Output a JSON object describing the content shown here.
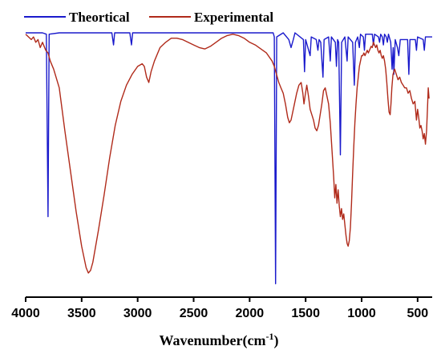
{
  "chart_data": {
    "type": "line",
    "title": "",
    "xlabel": "Wavenumber(cm",
    "xlabel_sup": "-1",
    "xlabel_close": ")",
    "ylabel": "",
    "xlim": [
      4000,
      370
    ],
    "ylim": [
      0,
      1
    ],
    "x_reversed": true,
    "y_ticks_shown": false,
    "grid": false,
    "legend_position": "top",
    "xticks": [
      4000,
      3500,
      3000,
      2500,
      2000,
      1500,
      1000,
      500
    ],
    "series": [
      {
        "name": "Theortical",
        "color": "#1a1acc",
        "points": [
          [
            4000,
            0.985
          ],
          [
            3850,
            0.985
          ],
          [
            3815,
            0.98
          ],
          [
            3800,
            0.3
          ],
          [
            3790,
            0.98
          ],
          [
            3700,
            0.985
          ],
          [
            3230,
            0.985
          ],
          [
            3215,
            0.94
          ],
          [
            3205,
            0.985
          ],
          [
            3070,
            0.985
          ],
          [
            3055,
            0.94
          ],
          [
            3045,
            0.985
          ],
          [
            1790,
            0.985
          ],
          [
            1780,
            0.97
          ],
          [
            1768,
            0.05
          ],
          [
            1758,
            0.97
          ],
          [
            1700,
            0.985
          ],
          [
            1650,
            0.96
          ],
          [
            1630,
            0.93
          ],
          [
            1610,
            0.96
          ],
          [
            1595,
            0.985
          ],
          [
            1520,
            0.96
          ],
          [
            1510,
            0.84
          ],
          [
            1500,
            0.96
          ],
          [
            1460,
            0.9
          ],
          [
            1450,
            0.97
          ],
          [
            1405,
            0.96
          ],
          [
            1390,
            0.92
          ],
          [
            1380,
            0.96
          ],
          [
            1365,
            0.95
          ],
          [
            1345,
            0.82
          ],
          [
            1335,
            0.96
          ],
          [
            1295,
            0.97
          ],
          [
            1280,
            0.88
          ],
          [
            1270,
            0.97
          ],
          [
            1235,
            0.95
          ],
          [
            1225,
            0.86
          ],
          [
            1215,
            0.96
          ],
          [
            1205,
            0.95
          ],
          [
            1190,
            0.53
          ],
          [
            1178,
            0.95
          ],
          [
            1150,
            0.97
          ],
          [
            1130,
            0.88
          ],
          [
            1120,
            0.97
          ],
          [
            1080,
            0.95
          ],
          [
            1065,
            0.79
          ],
          [
            1055,
            0.95
          ],
          [
            1035,
            0.97
          ],
          [
            1020,
            0.93
          ],
          [
            1010,
            0.98
          ],
          [
            985,
            0.97
          ],
          [
            975,
            0.92
          ],
          [
            965,
            0.98
          ],
          [
            905,
            0.98
          ],
          [
            895,
            0.94
          ],
          [
            885,
            0.98
          ],
          [
            850,
            0.97
          ],
          [
            840,
            0.95
          ],
          [
            830,
            0.98
          ],
          [
            815,
            0.97
          ],
          [
            805,
            0.94
          ],
          [
            795,
            0.98
          ],
          [
            780,
            0.97
          ],
          [
            770,
            0.95
          ],
          [
            760,
            0.98
          ],
          [
            740,
            0.95
          ],
          [
            728,
            0.85
          ],
          [
            718,
            0.93
          ],
          [
            712,
            0.83
          ],
          [
            700,
            0.96
          ],
          [
            680,
            0.93
          ],
          [
            668,
            0.9
          ],
          [
            655,
            0.96
          ],
          [
            590,
            0.96
          ],
          [
            578,
            0.83
          ],
          [
            568,
            0.96
          ],
          [
            520,
            0.96
          ],
          [
            510,
            0.92
          ],
          [
            500,
            0.97
          ],
          [
            450,
            0.96
          ],
          [
            440,
            0.92
          ],
          [
            430,
            0.97
          ],
          [
            370,
            0.97
          ]
        ]
      },
      {
        "name": "Experimental",
        "color": "#b02a1a",
        "points": [
          [
            4000,
            0.98
          ],
          [
            3950,
            0.96
          ],
          [
            3930,
            0.97
          ],
          [
            3910,
            0.95
          ],
          [
            3890,
            0.96
          ],
          [
            3870,
            0.93
          ],
          [
            3850,
            0.95
          ],
          [
            3820,
            0.92
          ],
          [
            3800,
            0.91
          ],
          [
            3780,
            0.88
          ],
          [
            3750,
            0.85
          ],
          [
            3700,
            0.78
          ],
          [
            3650,
            0.62
          ],
          [
            3600,
            0.47
          ],
          [
            3550,
            0.32
          ],
          [
            3500,
            0.19
          ],
          [
            3460,
            0.11
          ],
          [
            3440,
            0.09
          ],
          [
            3420,
            0.1
          ],
          [
            3400,
            0.13
          ],
          [
            3350,
            0.25
          ],
          [
            3300,
            0.38
          ],
          [
            3250,
            0.52
          ],
          [
            3200,
            0.64
          ],
          [
            3150,
            0.73
          ],
          [
            3100,
            0.79
          ],
          [
            3050,
            0.83
          ],
          [
            3000,
            0.86
          ],
          [
            2960,
            0.87
          ],
          [
            2940,
            0.86
          ],
          [
            2920,
            0.82
          ],
          [
            2900,
            0.8
          ],
          [
            2880,
            0.84
          ],
          [
            2850,
            0.88
          ],
          [
            2800,
            0.93
          ],
          [
            2750,
            0.95
          ],
          [
            2700,
            0.965
          ],
          [
            2650,
            0.965
          ],
          [
            2600,
            0.96
          ],
          [
            2550,
            0.95
          ],
          [
            2500,
            0.94
          ],
          [
            2450,
            0.93
          ],
          [
            2400,
            0.925
          ],
          [
            2350,
            0.935
          ],
          [
            2300,
            0.95
          ],
          [
            2250,
            0.965
          ],
          [
            2200,
            0.975
          ],
          [
            2150,
            0.98
          ],
          [
            2100,
            0.975
          ],
          [
            2050,
            0.965
          ],
          [
            2000,
            0.95
          ],
          [
            1950,
            0.94
          ],
          [
            1900,
            0.925
          ],
          [
            1850,
            0.91
          ],
          [
            1800,
            0.88
          ],
          [
            1780,
            0.86
          ],
          [
            1760,
            0.83
          ],
          [
            1740,
            0.8
          ],
          [
            1720,
            0.78
          ],
          [
            1700,
            0.76
          ],
          [
            1680,
            0.72
          ],
          [
            1660,
            0.67
          ],
          [
            1645,
            0.65
          ],
          [
            1630,
            0.66
          ],
          [
            1615,
            0.69
          ],
          [
            1600,
            0.72
          ],
          [
            1580,
            0.76
          ],
          [
            1560,
            0.79
          ],
          [
            1540,
            0.8
          ],
          [
            1525,
            0.76
          ],
          [
            1515,
            0.72
          ],
          [
            1505,
            0.75
          ],
          [
            1490,
            0.79
          ],
          [
            1475,
            0.75
          ],
          [
            1460,
            0.7
          ],
          [
            1445,
            0.68
          ],
          [
            1430,
            0.66
          ],
          [
            1415,
            0.63
          ],
          [
            1400,
            0.62
          ],
          [
            1385,
            0.64
          ],
          [
            1370,
            0.68
          ],
          [
            1355,
            0.72
          ],
          [
            1340,
            0.77
          ],
          [
            1325,
            0.78
          ],
          [
            1310,
            0.75
          ],
          [
            1295,
            0.72
          ],
          [
            1280,
            0.65
          ],
          [
            1265,
            0.55
          ],
          [
            1250,
            0.45
          ],
          [
            1240,
            0.37
          ],
          [
            1230,
            0.42
          ],
          [
            1220,
            0.35
          ],
          [
            1210,
            0.4
          ],
          [
            1200,
            0.34
          ],
          [
            1190,
            0.3
          ],
          [
            1180,
            0.33
          ],
          [
            1170,
            0.29
          ],
          [
            1160,
            0.31
          ],
          [
            1150,
            0.27
          ],
          [
            1140,
            0.23
          ],
          [
            1130,
            0.2
          ],
          [
            1120,
            0.19
          ],
          [
            1110,
            0.21
          ],
          [
            1100,
            0.26
          ],
          [
            1090,
            0.35
          ],
          [
            1080,
            0.46
          ],
          [
            1070,
            0.56
          ],
          [
            1060,
            0.65
          ],
          [
            1050,
            0.72
          ],
          [
            1040,
            0.78
          ],
          [
            1030,
            0.82
          ],
          [
            1020,
            0.86
          ],
          [
            1010,
            0.88
          ],
          [
            1000,
            0.9
          ],
          [
            990,
            0.9
          ],
          [
            980,
            0.91
          ],
          [
            970,
            0.9
          ],
          [
            960,
            0.91
          ],
          [
            950,
            0.92
          ],
          [
            940,
            0.91
          ],
          [
            930,
            0.92
          ],
          [
            915,
            0.935
          ],
          [
            905,
            0.93
          ],
          [
            895,
            0.95
          ],
          [
            885,
            0.94
          ],
          [
            875,
            0.93
          ],
          [
            865,
            0.94
          ],
          [
            855,
            0.92
          ],
          [
            845,
            0.91
          ],
          [
            835,
            0.92
          ],
          [
            825,
            0.9
          ],
          [
            815,
            0.89
          ],
          [
            805,
            0.9
          ],
          [
            795,
            0.88
          ],
          [
            785,
            0.85
          ],
          [
            775,
            0.8
          ],
          [
            765,
            0.74
          ],
          [
            755,
            0.69
          ],
          [
            745,
            0.68
          ],
          [
            738,
            0.72
          ],
          [
            730,
            0.78
          ],
          [
            720,
            0.83
          ],
          [
            705,
            0.85
          ],
          [
            690,
            0.83
          ],
          [
            675,
            0.81
          ],
          [
            660,
            0.82
          ],
          [
            645,
            0.8
          ],
          [
            630,
            0.79
          ],
          [
            615,
            0.78
          ],
          [
            600,
            0.78
          ],
          [
            585,
            0.76
          ],
          [
            570,
            0.77
          ],
          [
            555,
            0.74
          ],
          [
            540,
            0.72
          ],
          [
            525,
            0.73
          ],
          [
            510,
            0.66
          ],
          [
            500,
            0.7
          ],
          [
            490,
            0.67
          ],
          [
            480,
            0.63
          ],
          [
            470,
            0.64
          ],
          [
            460,
            0.62
          ],
          [
            450,
            0.59
          ],
          [
            440,
            0.61
          ],
          [
            430,
            0.57
          ],
          [
            420,
            0.62
          ],
          [
            412,
            0.7
          ],
          [
            405,
            0.78
          ],
          [
            398,
            0.74
          ]
        ]
      }
    ]
  }
}
